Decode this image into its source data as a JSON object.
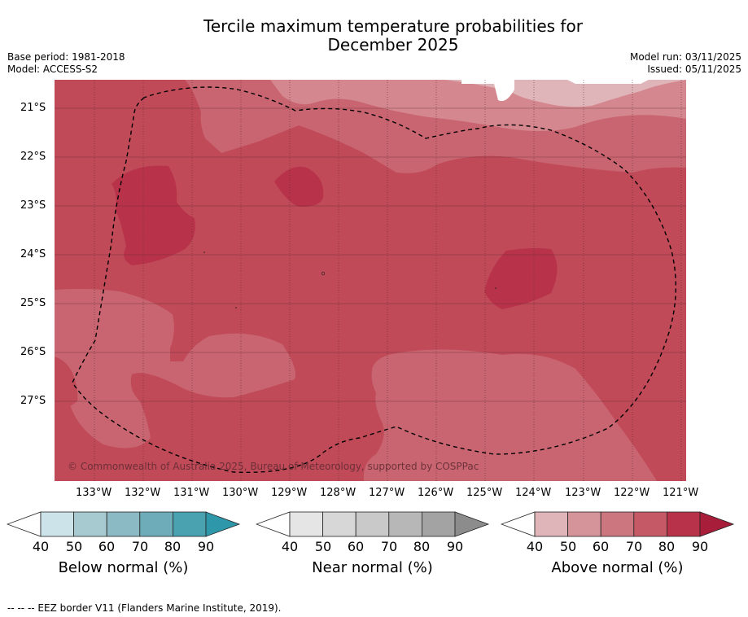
{
  "title": {
    "line1": "Tercile maximum temperature probabilities for",
    "line2": "December 2025"
  },
  "meta": {
    "base_period": "Base period: 1981-2018",
    "model": "Model: ACCESS-S2",
    "model_run": "Model run: 03/11/2025",
    "issued": "Issued: 05/11/2025"
  },
  "map": {
    "copyright": "© Commonwealth of Australia 2025, Bureau of Meteorology, supported by COSPPac",
    "lat_labels": [
      "21°S",
      "22°S",
      "23°S",
      "24°S",
      "25°S",
      "26°S",
      "27°S"
    ],
    "lon_labels": [
      "133°W",
      "132°W",
      "131°W",
      "130°W",
      "129°W",
      "128°W",
      "127°W",
      "126°W",
      "125°W",
      "124°W",
      "123°W",
      "122°W",
      "121°W"
    ],
    "colors": {
      "above_50": "#dfb5b9",
      "above_60": "#d4878f",
      "above_70": "#c96570",
      "above_80": "#c04a58",
      "above_90": "#b8334a",
      "grid": "#5a2a30"
    }
  },
  "colorbars": [
    {
      "title": "Below normal (%)",
      "ticks": [
        "40",
        "50",
        "60",
        "70",
        "80",
        "90"
      ],
      "colors": [
        "#cce3e9",
        "#a7c9d0",
        "#8bbac5",
        "#6eacba",
        "#4aa2b0",
        "#2f97aa"
      ]
    },
    {
      "title": "Near normal (%)",
      "ticks": [
        "40",
        "50",
        "60",
        "70",
        "80",
        "90"
      ],
      "colors": [
        "#e5e5e5",
        "#d7d7d7",
        "#c9c9c9",
        "#b7b7b7",
        "#a3a3a3",
        "#8c8c8c"
      ]
    },
    {
      "title": "Above normal (%)",
      "ticks": [
        "40",
        "50",
        "60",
        "70",
        "80",
        "90"
      ],
      "colors": [
        "#dfb5b9",
        "#d4949a",
        "#cc7680",
        "#c55a66",
        "#b8334a",
        "#a81d3a"
      ]
    }
  ],
  "legend": {
    "eez": "-- -- -- EEZ border V11 (Flanders Marine Institute, 2019)."
  }
}
